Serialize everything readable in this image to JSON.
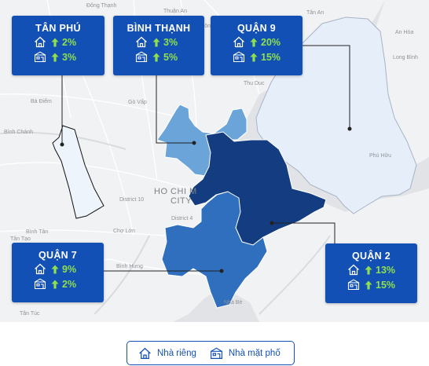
{
  "map": {
    "places": {
      "dong_thanh": "Đông Thạnh",
      "thuan_an": "Thuận An",
      "ba_diem": "Bà Điểm",
      "go_vap": "Gò Vấp",
      "thu_duc": "Thu Duc",
      "an_hoa": "An Hòa",
      "binh_chanh": "Bình Chánh",
      "district_10": "District 10",
      "district_4": "District 4",
      "cho_lon": "Chợ Lớn",
      "binh_tan": "Bình Tân",
      "tan_tao": "Tân Tạo",
      "binh_hung": "Bình Hưng",
      "tan_tuc": "Tân Túc",
      "nha_be": "Nhà Bè",
      "hoc_mon": "Hóc Môn",
      "tan_an": "Tân An",
      "long_binh": "Long Bình",
      "phu_huu": "Phú Hữu"
    },
    "city_label_line1": "HO CHI M",
    "city_label_line2": "CITY",
    "colors": {
      "water": "#e1e3e6",
      "land": "#f1f2f3",
      "tan_phu": "#eef4fb",
      "quan_9": "#e6eef9",
      "binh_thanh": "#6aa4d8",
      "quan_7": "#2f6fbd",
      "quan_2": "#133d80",
      "card": "#1350b5",
      "growth": "#8fe04c"
    }
  },
  "districts": [
    {
      "name": "TÂN PHÚ",
      "house": "2%",
      "townhouse": "3%"
    },
    {
      "name": "BÌNH THẠNH",
      "house": "3%",
      "townhouse": "5%"
    },
    {
      "name": "QUẬN 9",
      "house": "20%",
      "townhouse": "15%"
    },
    {
      "name": "QUẬN 7",
      "house": "9%",
      "townhouse": "2%"
    },
    {
      "name": "QUẬN 2",
      "house": "13%",
      "townhouse": "15%"
    }
  ],
  "icons": {
    "house": "house-icon",
    "townhouse": "townhouse-icon",
    "growth": "arrow-up-icon"
  },
  "legend": {
    "house_label": "Nhà riêng",
    "townhouse_label": "Nhà mặt phố"
  }
}
